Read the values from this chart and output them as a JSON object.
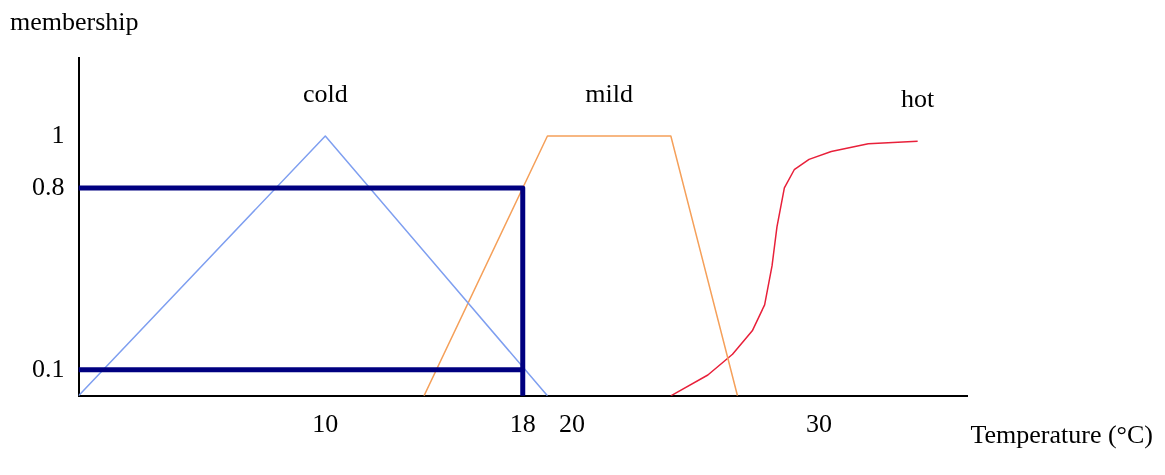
{
  "chart_data": {
    "type": "line",
    "xlabel": "Temperature (°C)",
    "ylabel": "membership",
    "xlim": [
      0,
      36
    ],
    "xticks": [
      10,
      18,
      20,
      30
    ],
    "ylim": [
      0,
      1.3
    ],
    "yticks": [
      0.1,
      0.8,
      1
    ],
    "grid": false,
    "legend": false,
    "marker": "none",
    "series": [
      {
        "name": "cold",
        "color": "#7f9ff0",
        "x": [
          0,
          10,
          19
        ],
        "values": [
          0,
          1,
          0
        ]
      },
      {
        "name": "mild",
        "color": "#f5a05a",
        "x": [
          14,
          19,
          24,
          26.7
        ],
        "values": [
          0,
          1,
          1,
          0
        ]
      },
      {
        "name": "hot",
        "color": "#e8203a",
        "x": [
          24,
          25.5,
          26.5,
          27.3,
          27.8,
          28.1,
          28.3,
          28.6,
          29,
          29.6,
          30.5,
          32,
          34
        ],
        "values": [
          0,
          0.08,
          0.16,
          0.25,
          0.35,
          0.5,
          0.65,
          0.8,
          0.87,
          0.91,
          0.94,
          0.97,
          0.98
        ]
      },
      {
        "color": "#000080",
        "x": [
          0,
          18,
          18
        ],
        "values": [
          0.8,
          0.8,
          0
        ]
      },
      {
        "color": "#000080",
        "x": [
          0,
          18
        ],
        "values": [
          0.1,
          0.1
        ]
      }
    ]
  }
}
